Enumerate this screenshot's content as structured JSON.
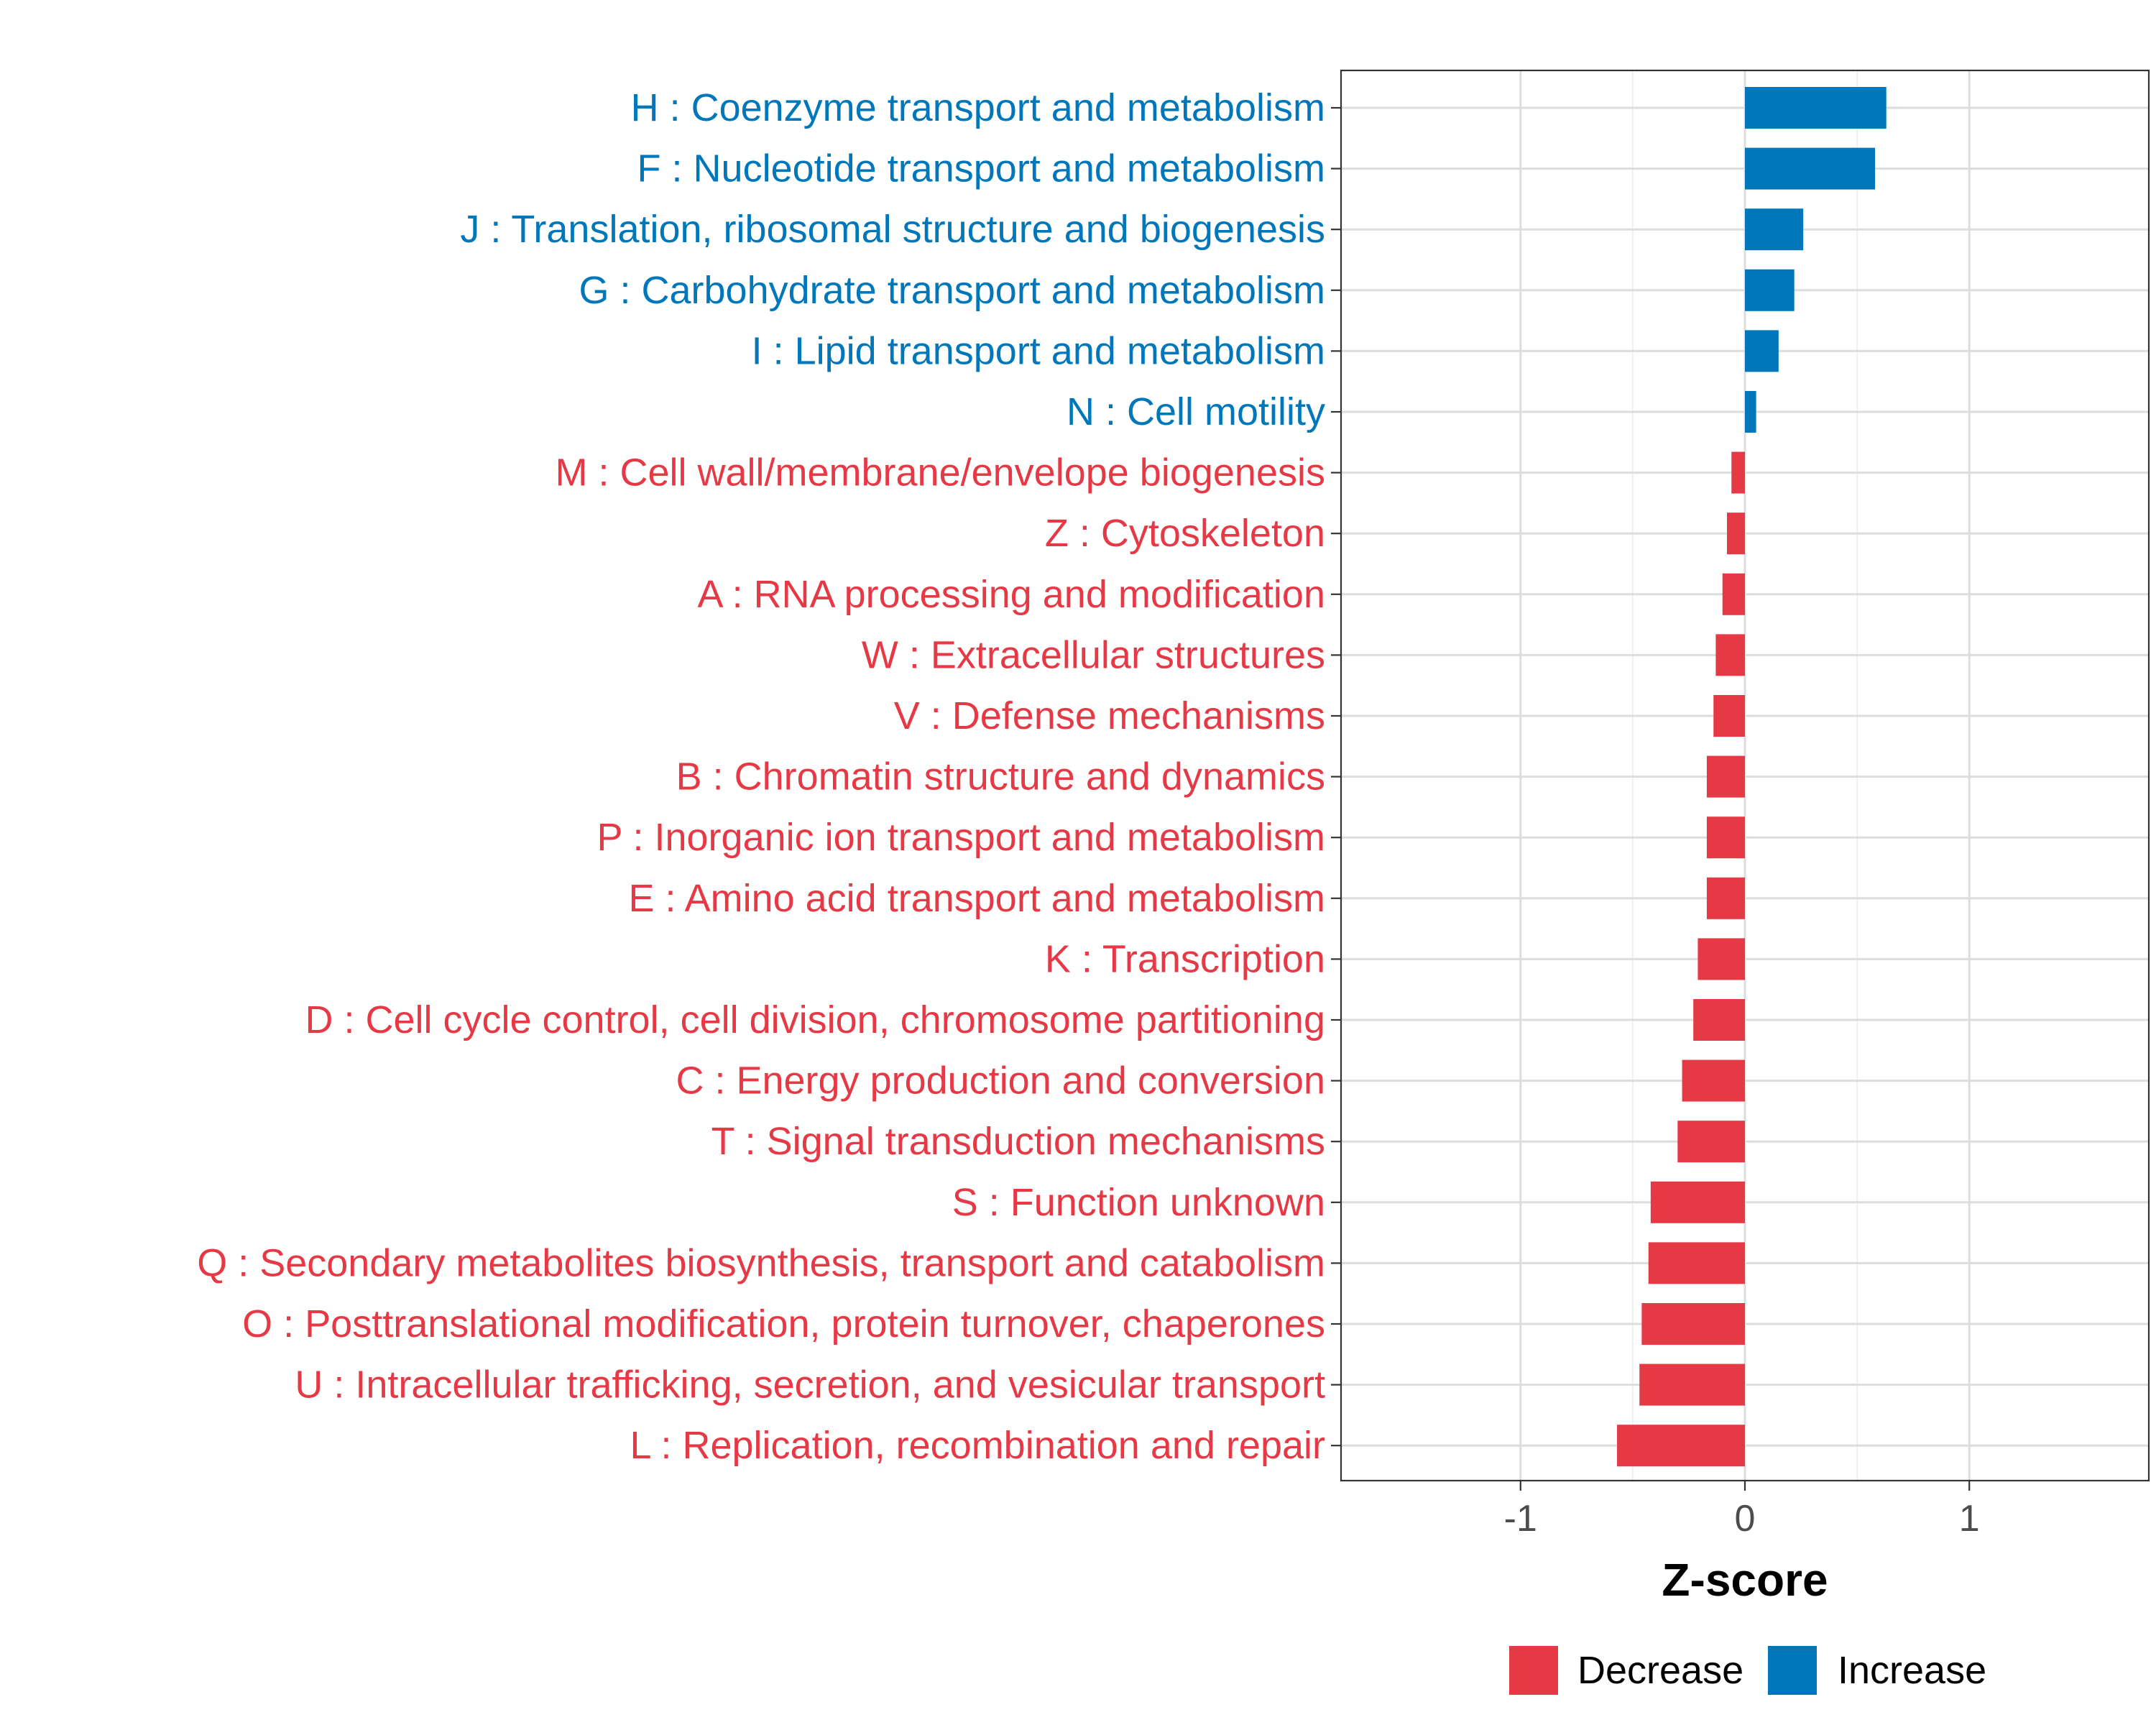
{
  "chart_data": {
    "type": "bar",
    "orientation": "horizontal",
    "title": "",
    "xlabel": "Z-score",
    "ylabel": "",
    "xlim": [
      -1.8,
      1.8
    ],
    "x_ticks": [
      -1,
      0,
      1
    ],
    "x_tick_labels": [
      "-1",
      "0",
      "1"
    ],
    "grid": true,
    "legend_position": "bottom",
    "colors": {
      "Decrease": "#e63946",
      "Increase": "#0077bb"
    },
    "legend": [
      {
        "label": "Decrease",
        "color": "#e63946"
      },
      {
        "label": "Increase",
        "color": "#0077bb"
      }
    ],
    "categories": [
      "H : Coenzyme transport and metabolism",
      "F : Nucleotide transport and metabolism",
      "J : Translation, ribosomal structure and biogenesis",
      "G : Carbohydrate transport and metabolism",
      "I : Lipid transport and metabolism",
      "N : Cell motility",
      "M : Cell wall/membrane/envelope biogenesis",
      "Z : Cytoskeleton",
      "A : RNA processing and modification",
      "W : Extracellular structures",
      "V : Defense mechanisms",
      "B : Chromatin structure and dynamics",
      "P : Inorganic ion transport and metabolism",
      "E : Amino acid transport and metabolism",
      "K : Transcription",
      "D : Cell cycle control, cell division, chromosome partitioning",
      "C : Energy production and conversion",
      "T : Signal transduction mechanisms",
      "S : Function unknown",
      "Q : Secondary metabolites biosynthesis, transport and catabolism",
      "O : Posttranslational modification, protein turnover, chaperones",
      "U : Intracellular trafficking, secretion, and vesicular transport",
      "L : Replication, recombination and repair"
    ],
    "values": [
      0.63,
      0.58,
      0.26,
      0.22,
      0.15,
      0.05,
      -0.06,
      -0.08,
      -0.1,
      -0.13,
      -0.14,
      -0.17,
      -0.17,
      -0.17,
      -0.21,
      -0.23,
      -0.28,
      -0.3,
      -0.42,
      -0.43,
      -0.46,
      -0.47,
      -0.57
    ],
    "groups": [
      "Increase",
      "Increase",
      "Increase",
      "Increase",
      "Increase",
      "Increase",
      "Decrease",
      "Decrease",
      "Decrease",
      "Decrease",
      "Decrease",
      "Decrease",
      "Decrease",
      "Decrease",
      "Decrease",
      "Decrease",
      "Decrease",
      "Decrease",
      "Decrease",
      "Decrease",
      "Decrease",
      "Decrease",
      "Decrease"
    ]
  }
}
